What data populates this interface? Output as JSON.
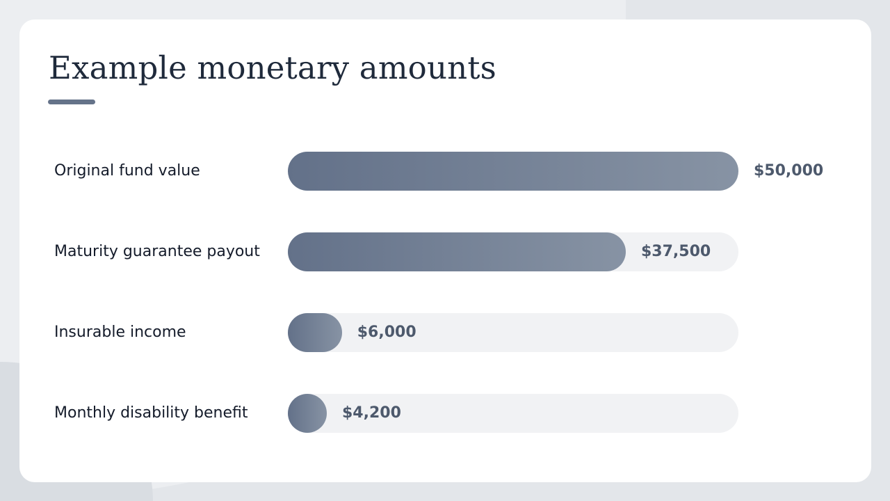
{
  "chart_data": {
    "type": "bar",
    "orientation": "horizontal",
    "title": "Example monetary amounts",
    "categories": [
      "Original fund value",
      "Maturity guarantee payout",
      "Insurable income",
      "Monthly disability benefit"
    ],
    "values": [
      50000,
      37500,
      6000,
      4200
    ],
    "value_labels": [
      "$50,000",
      "$37,500",
      "$6,000",
      "$4,200"
    ],
    "xlim": [
      0,
      50000
    ],
    "grid": false,
    "legend": "none"
  },
  "colors": {
    "bar_gradient_start": "#637189",
    "bar_gradient_end": "#8793a4",
    "track": "#f1f2f4",
    "accent_underline": "#657389",
    "title": "#1f2a3b",
    "label": "#141b2a",
    "value": "#4d596c",
    "background": "#e3e6ea",
    "card": "#ffffff"
  }
}
